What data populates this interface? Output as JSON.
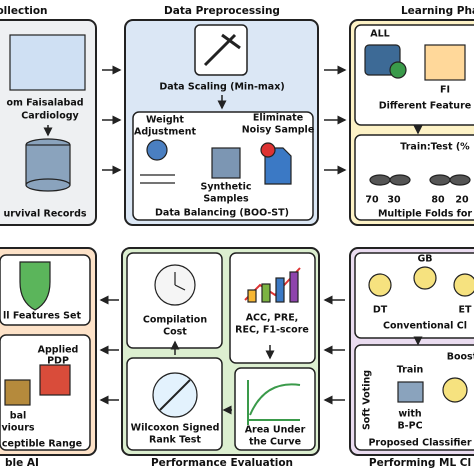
{
  "panels": [
    {
      "title": "ollection",
      "texts": [
        "om Faisalabad",
        "Cardiology",
        "urvival Records"
      ]
    },
    {
      "title": "Data Preprocessing",
      "texts": [
        "Data Scaling (Min-max)",
        "Weight",
        "Adjustment",
        "Eliminate",
        "Noisy Sample",
        "Synthetic",
        "Samples",
        "Data Balancing (BOO-ST)"
      ]
    },
    {
      "title": "Learning Pha",
      "texts": [
        "ALL",
        "FI",
        "Different Feature",
        "Train:Test (%",
        "70",
        "30",
        "80",
        "20",
        "Multiple Folds for"
      ]
    },
    {
      "title": "ble AI",
      "texts": [
        "ll Features Set",
        "Applied",
        "PDP",
        "bal",
        "viours",
        "ceptible Range"
      ]
    },
    {
      "title": "Performance Evaluation",
      "texts": [
        "Compilation",
        "Cost",
        "ACC, PRE,",
        "REC, F1-score",
        "Wilcoxon Signed",
        "Rank Test",
        "Area Under",
        "the Curve"
      ]
    },
    {
      "title": "Performing ML Cl",
      "texts": [
        "GB",
        "DT",
        "ET",
        "Conventional Cl",
        "Boost",
        "Soft Voting",
        "Train",
        "with",
        "B-PC",
        "Proposed Classifier"
      ]
    }
  ]
}
